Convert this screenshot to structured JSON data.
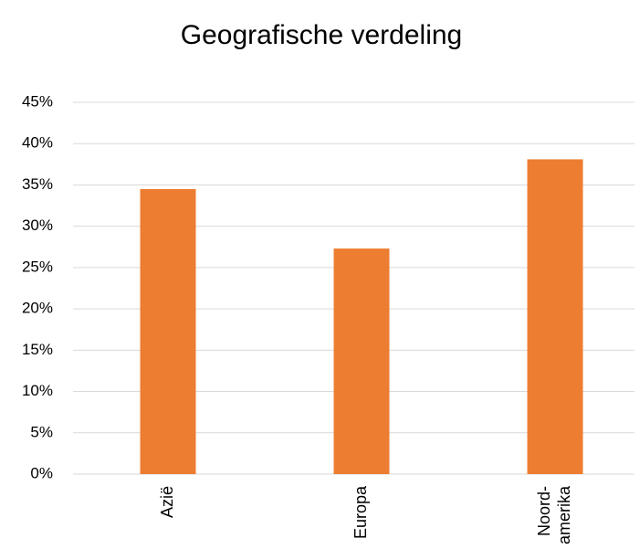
{
  "chart_data": {
    "type": "bar",
    "title": "Geografische verdeling",
    "categories": [
      "Azië",
      "Europa",
      "Noord-amerika"
    ],
    "values": [
      34.5,
      27.3,
      38.1
    ],
    "color": "#ed7d31",
    "ylim": [
      0,
      45
    ],
    "yticks": [
      {
        "value": 0,
        "label": "0%"
      },
      {
        "value": 5,
        "label": "5%"
      },
      {
        "value": 10,
        "label": "10%"
      },
      {
        "value": 15,
        "label": "15%"
      },
      {
        "value": 20,
        "label": "20%"
      },
      {
        "value": 25,
        "label": "25%"
      },
      {
        "value": 30,
        "label": "30%"
      },
      {
        "value": 35,
        "label": "35%"
      },
      {
        "value": 40,
        "label": "40%"
      },
      {
        "value": 45,
        "label": "45%"
      }
    ],
    "grid": true
  }
}
